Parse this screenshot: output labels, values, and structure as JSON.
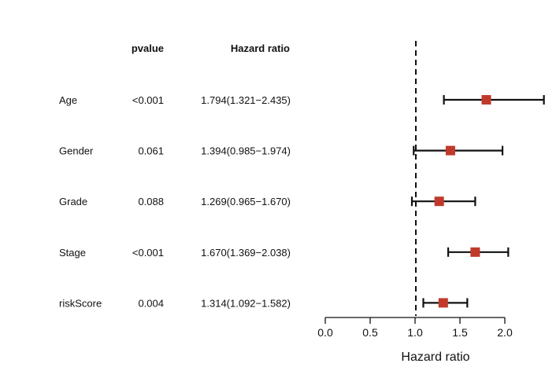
{
  "chart_data": {
    "type": "forest",
    "headers": {
      "pvalue": "pvalue",
      "hazard_ratio": "Hazard ratio"
    },
    "rows": [
      {
        "variable": "Age",
        "pvalue": "<0.001",
        "hr_text": "1.794(1.321−2.435)",
        "hr": 1.794,
        "lower": 1.321,
        "upper": 2.435
      },
      {
        "variable": "Gender",
        "pvalue": "0.061",
        "hr_text": "1.394(0.985−1.974)",
        "hr": 1.394,
        "lower": 0.985,
        "upper": 1.974
      },
      {
        "variable": "Grade",
        "pvalue": "0.088",
        "hr_text": "1.269(0.965−1.670)",
        "hr": 1.269,
        "lower": 0.965,
        "upper": 1.67
      },
      {
        "variable": "Stage",
        "pvalue": "<0.001",
        "hr_text": "1.670(1.369−2.038)",
        "hr": 1.67,
        "lower": 1.369,
        "upper": 2.038
      },
      {
        "variable": "riskScore",
        "pvalue": "0.004",
        "hr_text": "1.314(1.092−1.582)",
        "hr": 1.314,
        "lower": 1.092,
        "upper": 1.582
      }
    ],
    "xlabel": "Hazard ratio",
    "x_ticks": [
      "0.0",
      "0.5",
      "1.0",
      "1.5",
      "2.0"
    ],
    "xlim": [
      0,
      2.0
    ],
    "reference_line": 1.0,
    "marker_color": "#c0392b"
  }
}
